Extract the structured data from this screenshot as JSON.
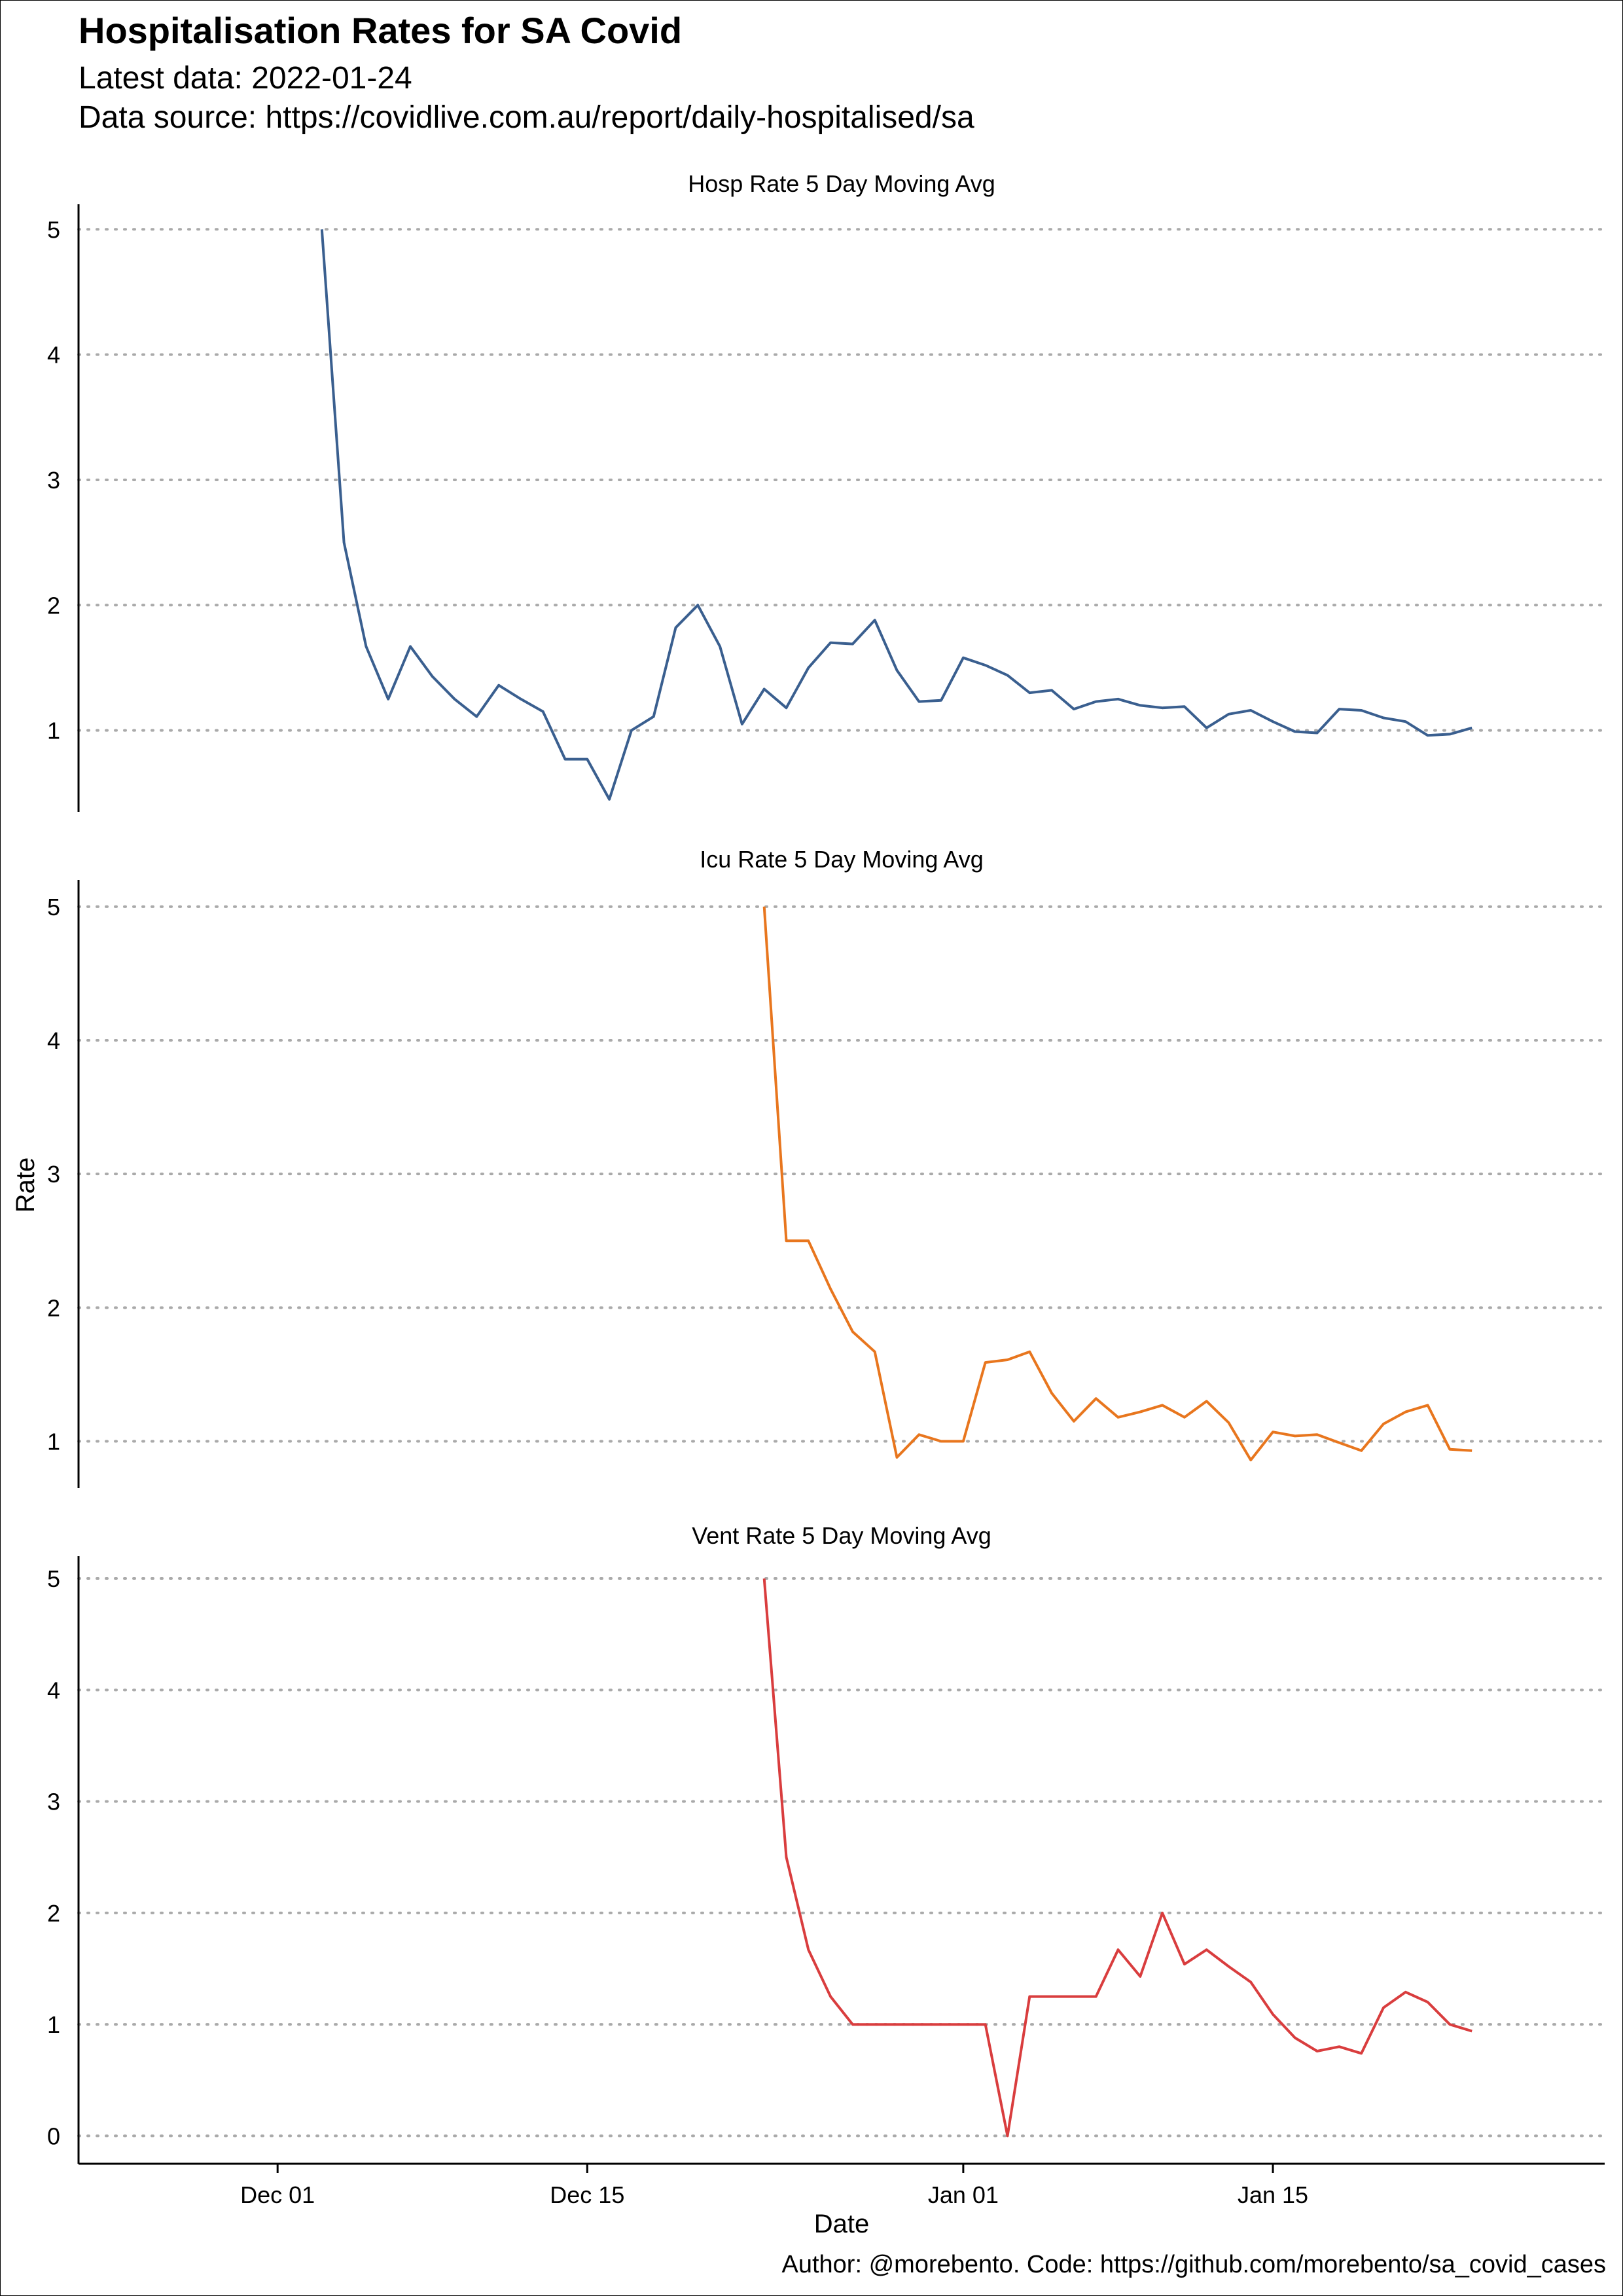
{
  "title": "Hospitalisation Rates for SA Covid",
  "subtitle_line1": "Latest data: 2022-01-24",
  "subtitle_line2": "Data source: https://covidlive.com.au/report/daily-hospitalised/sa",
  "caption": "Author: @morebento. Code: https://github.com/morebento/sa_covid_cases",
  "chart_data": {
    "type": "line",
    "facets": "vertical, shared x axis",
    "xlabel": "Date",
    "ylabel": "Rate",
    "xlim": [
      "2021-11-22",
      "2022-01-30"
    ],
    "x_ticks": [
      {
        "date": "2021-12-01",
        "label": "Dec 01"
      },
      {
        "date": "2021-12-15",
        "label": "Dec 15"
      },
      {
        "date": "2022-01-01",
        "label": "Jan 01"
      },
      {
        "date": "2022-01-15",
        "label": "Jan 15"
      }
    ],
    "grid": "horizontal dotted major gridlines",
    "panels": [
      {
        "name": "Hosp Rate 5 Day Moving Avg",
        "color": "#3a5f8f",
        "ylim": [
          0.35,
          5.2
        ],
        "yticks": [
          1,
          2,
          3,
          4,
          5
        ],
        "start": "2021-12-03",
        "values": [
          5.0,
          2.5,
          1.67,
          1.25,
          1.67,
          1.43,
          1.25,
          1.11,
          1.36,
          1.25,
          1.15,
          0.77,
          0.77,
          0.45,
          1.0,
          1.11,
          1.82,
          2.0,
          1.67,
          1.05,
          1.33,
          1.18,
          1.5,
          1.7,
          1.69,
          1.88,
          1.48,
          1.23,
          1.24,
          1.58,
          1.52,
          1.44,
          1.3,
          1.32,
          1.17,
          1.23,
          1.25,
          1.2,
          1.18,
          1.19,
          1.02,
          1.13,
          1.16,
          1.07,
          0.99,
          0.98,
          1.17,
          1.16,
          1.1,
          1.07,
          0.96,
          0.97,
          1.02
        ]
      },
      {
        "name": "Icu Rate 5 Day Moving Avg",
        "color": "#e8761e",
        "ylim": [
          0.65,
          5.2
        ],
        "yticks": [
          1,
          2,
          3,
          4,
          5
        ],
        "start": "2021-12-23",
        "values": [
          5.0,
          2.5,
          2.5,
          2.14,
          1.82,
          1.67,
          0.88,
          1.05,
          1.0,
          1.0,
          1.59,
          1.61,
          1.67,
          1.36,
          1.15,
          1.32,
          1.18,
          1.22,
          1.27,
          1.18,
          1.3,
          1.14,
          0.86,
          1.07,
          1.04,
          1.05,
          0.99,
          0.93,
          1.13,
          1.22,
          1.27,
          0.94,
          0.93
        ]
      },
      {
        "name": "Vent Rate 5 Day Moving Avg",
        "color": "#d93d3e",
        "ylim": [
          -0.25,
          5.2
        ],
        "yticks": [
          0,
          1,
          2,
          3,
          4,
          5
        ],
        "start": "2021-12-23",
        "values": [
          5.0,
          2.5,
          1.67,
          1.25,
          1.0,
          1.0,
          1.0,
          1.0,
          1.0,
          1.0,
          1.0,
          0.0,
          1.25,
          1.25,
          1.25,
          1.25,
          1.67,
          1.43,
          2.0,
          1.54,
          1.67,
          1.52,
          1.38,
          1.09,
          0.88,
          0.76,
          0.8,
          0.74,
          1.15,
          1.29,
          1.2,
          1.0,
          0.94
        ]
      }
    ]
  }
}
